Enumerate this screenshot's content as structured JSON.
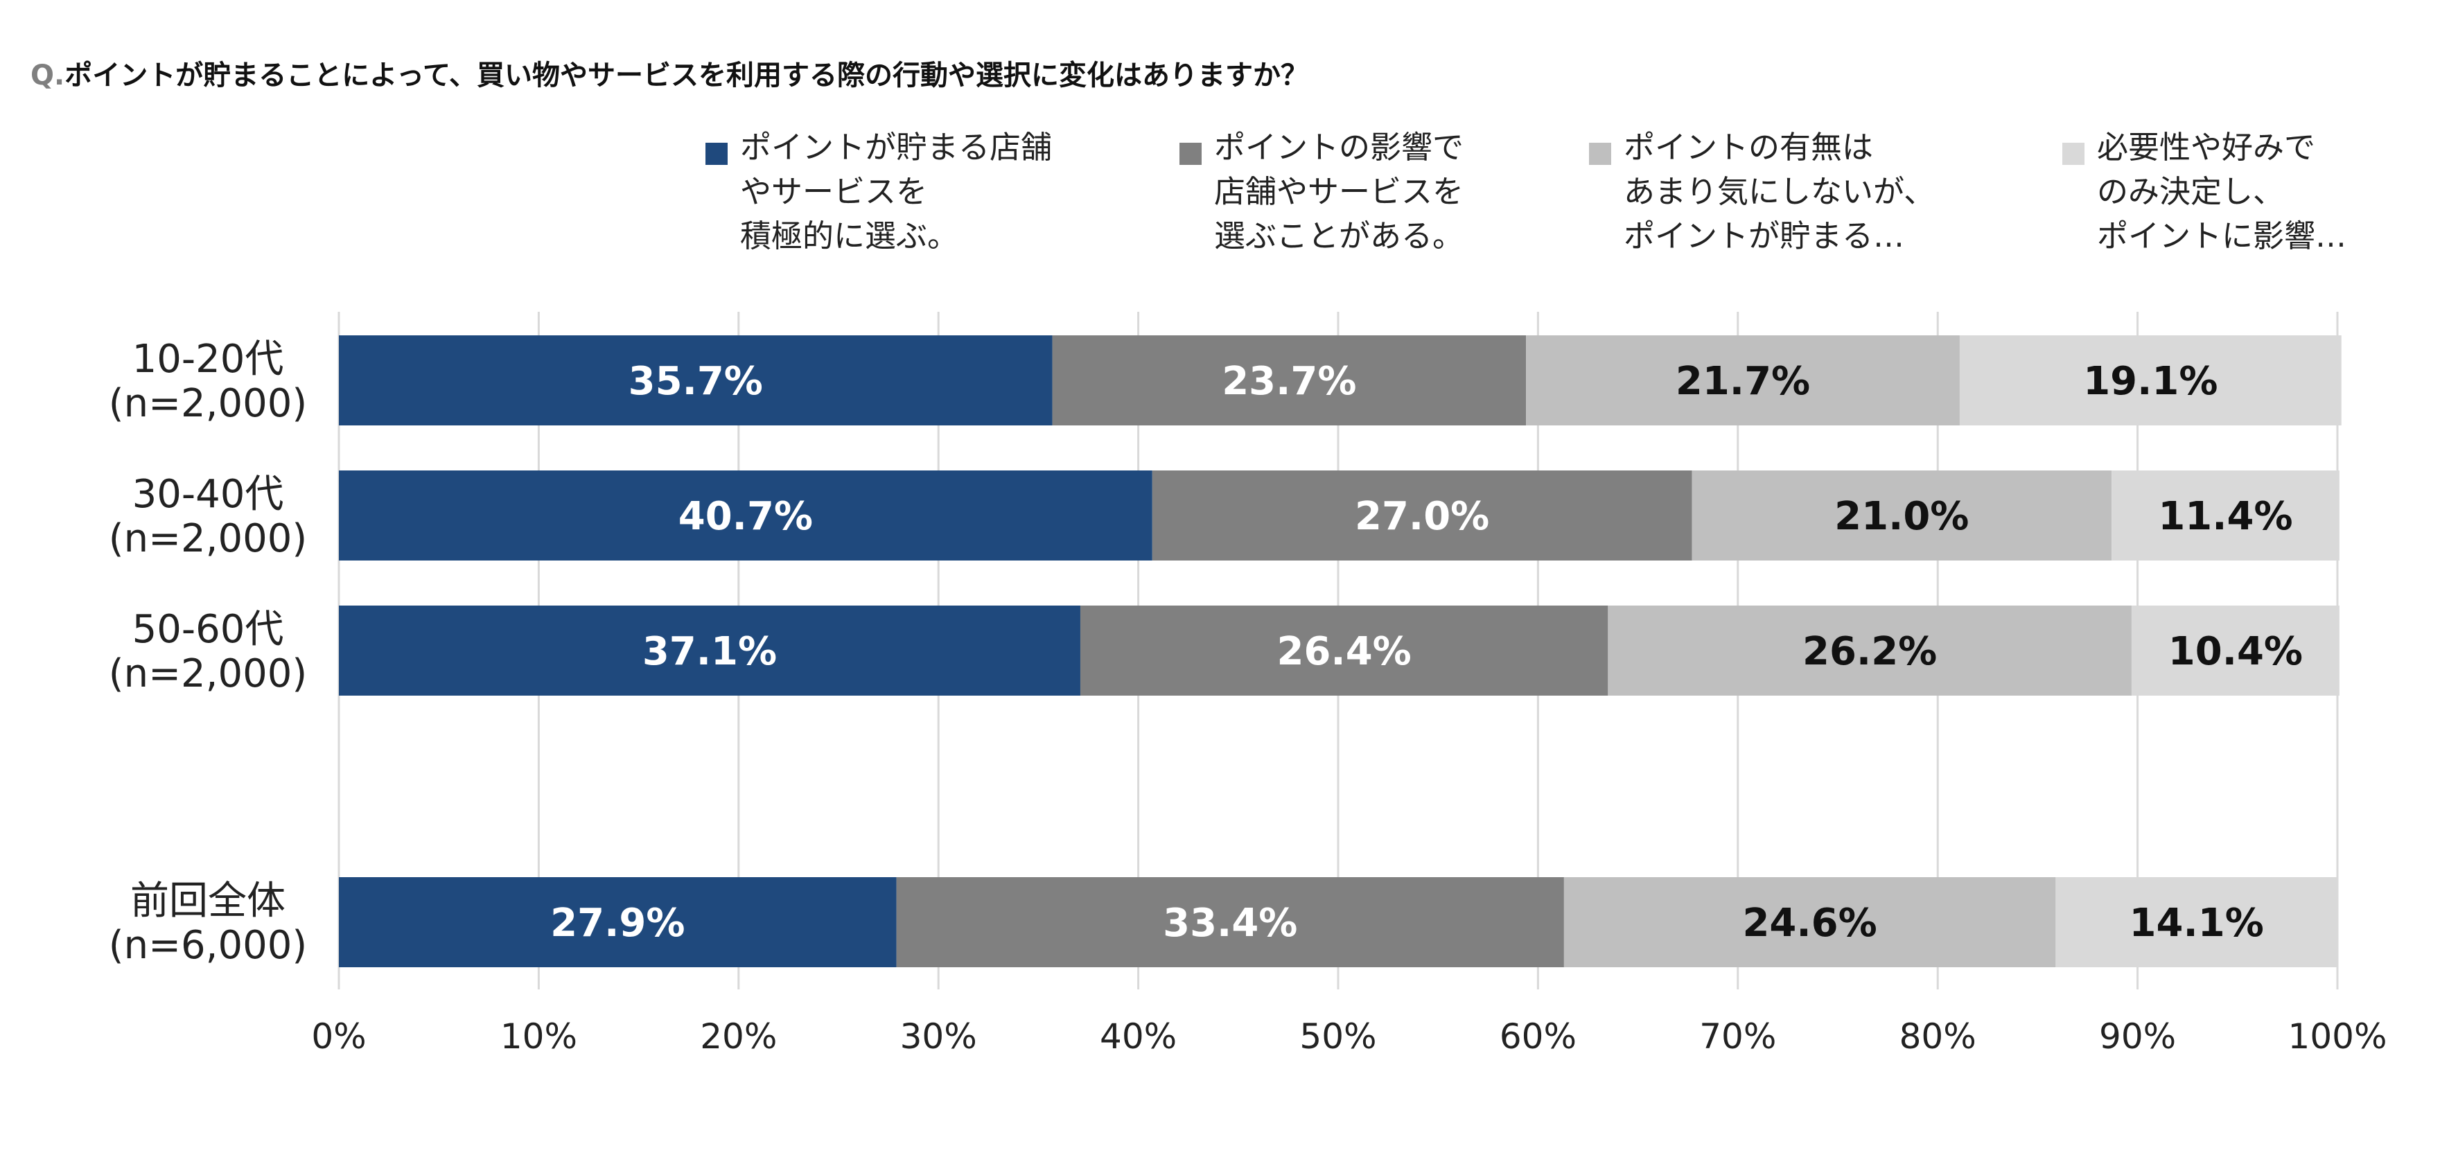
{
  "title": {
    "prefix": "Q.",
    "text": "ポイントが貯まることによって、買い物やサービスを利用する際の行動や選択に変化はありますか？"
  },
  "chart_data": {
    "type": "bar",
    "orientation": "horizontal",
    "stacked": true,
    "categories": [
      [
        "10-20代",
        "(n=2,000)"
      ],
      [
        "30-40代",
        "(n=2,000)"
      ],
      [
        "50-60代",
        "(n=2,000)"
      ],
      [
        "前回全体",
        "(n=6,000)"
      ]
    ],
    "series": [
      {
        "name_lines": [
          "ポイントが貯まる店舗",
          "やサービスを",
          "積極的に選ぶ。"
        ],
        "color": "#1f497d",
        "label_color": "#ffffff",
        "values": [
          35.7,
          40.7,
          37.1,
          27.9
        ]
      },
      {
        "name_lines": [
          "ポイントの影響で",
          "店舗やサービスを",
          "選ぶことがある。"
        ],
        "color": "#808080",
        "label_color": "#ffffff",
        "values": [
          23.7,
          27.0,
          26.4,
          33.4
        ]
      },
      {
        "name_lines": [
          "ポイントの有無は",
          "あまり気にしないが、",
          "ポイントが貯まる…"
        ],
        "color": "#bfbfbf",
        "label_color": "#111111",
        "values": [
          21.7,
          21.0,
          26.2,
          24.6
        ]
      },
      {
        "name_lines": [
          "必要性や好みで",
          "のみ決定し、",
          "ポイントに影響…"
        ],
        "color": "#d9d9d9",
        "label_color": "#111111",
        "values": [
          19.1,
          11.4,
          10.4,
          14.1
        ]
      }
    ],
    "value_suffix": "%",
    "xlim": [
      0,
      100
    ],
    "xticks": [
      0,
      10,
      20,
      30,
      40,
      50,
      60,
      70,
      80,
      90,
      100
    ],
    "xtick_suffix": "%",
    "grid": true,
    "legend_position": "top"
  }
}
